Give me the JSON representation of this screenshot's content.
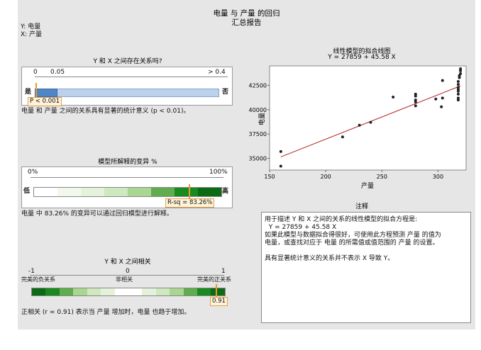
{
  "header": {
    "title": "电量 与 产量 的回归",
    "subtitle": "汇总报告",
    "y_var": "Y: 电量",
    "x_var": "X: 产量"
  },
  "relationship": {
    "title": "Y 和 X 之间存在关系吗?",
    "ticks": [
      "0",
      "0.05",
      "> 0.4"
    ],
    "yes_label": "是",
    "no_label": "否",
    "p_label": "P < 0.001",
    "p_value_fraction": 0.001,
    "statement": "电量 和 产量 之间的关系具有显著的统计意义 (p < 0.01)。"
  },
  "variance": {
    "title": "模型所解释的变异 %",
    "scale_left": "0%",
    "scale_right": "100%",
    "low_label": "低",
    "high_label": "高",
    "rsq_label": "R-sq = 83.26%",
    "rsq_value": 83.26,
    "statement": "电量 中 83.26% 的变异可以通过回归模型进行解释。"
  },
  "correlation": {
    "title": "Y 和 X 之间相关",
    "scale_left": "-1",
    "scale_mid": "0",
    "scale_right": "1",
    "neg_label": "完美的负关系",
    "mid_label": "非相关",
    "pos_label": "完美的正关系",
    "r_label": "0.91",
    "r_value": 0.91,
    "statement": "正相关 (r = 0.91) 表示当 产量 增加时，电量 也趋于增加。"
  },
  "plot": {
    "title": "线性模型的拟合线图",
    "equation": "Y = 27859 + 45.58 X"
  },
  "chart_data": {
    "type": "scatter",
    "title": "线性模型的拟合线图",
    "subtitle": "Y = 27859 + 45.58 X",
    "xlabel": "产量",
    "ylabel": "电量",
    "xlim": [
      150,
      325
    ],
    "ylim": [
      33800,
      44500
    ],
    "x_ticks": [
      "150",
      "200",
      "250",
      "300"
    ],
    "y_ticks": [
      "35000",
      "37500",
      "40000",
      "42500"
    ],
    "fit_line": {
      "intercept": 27859,
      "slope": 45.58
    },
    "points": [
      [
        160,
        34200
      ],
      [
        160,
        35700
      ],
      [
        215,
        37200
      ],
      [
        230,
        38400
      ],
      [
        240,
        38700
      ],
      [
        260,
        41300
      ],
      [
        280,
        40400
      ],
      [
        280,
        40800
      ],
      [
        280,
        41000
      ],
      [
        280,
        41400
      ],
      [
        280,
        41600
      ],
      [
        298,
        41100
      ],
      [
        303,
        40300
      ],
      [
        304,
        41200
      ],
      [
        304,
        43000
      ],
      [
        318,
        41200
      ],
      [
        318,
        41600
      ],
      [
        318,
        41900
      ],
      [
        318,
        42100
      ],
      [
        318,
        42300
      ],
      [
        318,
        42600
      ],
      [
        318,
        42900
      ],
      [
        319,
        43300
      ],
      [
        319,
        43500
      ],
      [
        320,
        43700
      ],
      [
        320,
        44000
      ],
      [
        320,
        44200
      ],
      [
        318,
        41000
      ]
    ]
  },
  "notes": {
    "title": "注释",
    "lines": [
      "用于描述 Y 和 X 之间的关系的线性模型的拟合方程是:",
      "  Y = 27859 + 45.58 X",
      "如果此模型与数据拟合得很好，可使用此方程预测 产量 的值为",
      "电量，或查找对应于 电量 的所需值或值范围的 产量 的设置。",
      "",
      "具有显著统计意义的关系并不表示 X 导致 Y。"
    ]
  }
}
